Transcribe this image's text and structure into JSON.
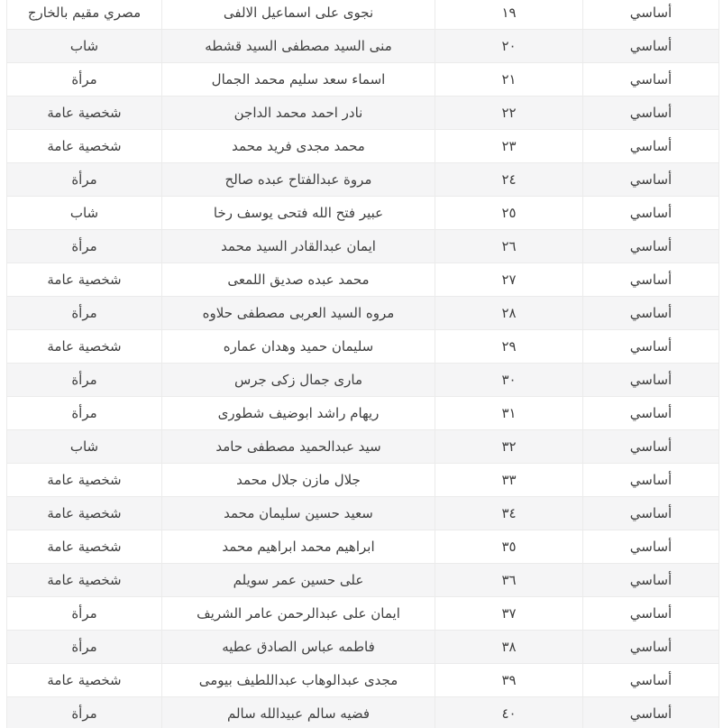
{
  "colors": {
    "background": "#ffffff",
    "row_stripe": "#f5f5f6",
    "border": "#ebebeb",
    "text": "#404040"
  },
  "table": {
    "direction": "rtl",
    "rows": [
      {
        "type": "أساسي",
        "number": "١٩",
        "name": "نجوى على اسماعيل الالفى",
        "category": "مصري مقيم بالخارج"
      },
      {
        "type": "أساسي",
        "number": "٢٠",
        "name": "منى السيد مصطفى السيد قشطه",
        "category": "شاب"
      },
      {
        "type": "أساسي",
        "number": "٢١",
        "name": "اسماء سعد سليم محمد الجمال",
        "category": "مرأة"
      },
      {
        "type": "أساسي",
        "number": "٢٢",
        "name": "نادر احمد محمد الداجن",
        "category": "شخصية عامة"
      },
      {
        "type": "أساسي",
        "number": "٢٣",
        "name": "محمد مجدى فريد محمد",
        "category": "شخصية عامة"
      },
      {
        "type": "أساسي",
        "number": "٢٤",
        "name": "مروة عبدالفتاح عبده صالح",
        "category": "مرأة"
      },
      {
        "type": "أساسي",
        "number": "٢٥",
        "name": "عبير فتح الله فتحى يوسف رخا",
        "category": "شاب"
      },
      {
        "type": "أساسي",
        "number": "٢٦",
        "name": "ايمان عبدالقادر السيد محمد",
        "category": "مرأة"
      },
      {
        "type": "أساسي",
        "number": "٢٧",
        "name": "محمد عبده صديق اللمعى",
        "category": "شخصية عامة"
      },
      {
        "type": "أساسي",
        "number": "٢٨",
        "name": "مروه السيد العربى مصطفى حلاوه",
        "category": "مرأة"
      },
      {
        "type": "أساسي",
        "number": "٢٩",
        "name": "سليمان حميد وهدان عماره",
        "category": "شخصية عامة"
      },
      {
        "type": "أساسي",
        "number": "٣٠",
        "name": "مارى جمال زكى جرس",
        "category": "مرأة"
      },
      {
        "type": "أساسي",
        "number": "٣١",
        "name": "ريهام راشد ابوضيف شطورى",
        "category": "مرأة"
      },
      {
        "type": "أساسي",
        "number": "٣٢",
        "name": "سيد عبدالحميد مصطفى حامد",
        "category": "شاب"
      },
      {
        "type": "أساسي",
        "number": "٣٣",
        "name": "جلال مازن جلال محمد",
        "category": "شخصية عامة"
      },
      {
        "type": "أساسي",
        "number": "٣٤",
        "name": "سعيد حسين سليمان محمد",
        "category": "شخصية عامة"
      },
      {
        "type": "أساسي",
        "number": "٣٥",
        "name": "ابراهيم محمد ابراهيم محمد",
        "category": "شخصية عامة"
      },
      {
        "type": "أساسي",
        "number": "٣٦",
        "name": "على حسين عمر سويلم",
        "category": "شخصية عامة"
      },
      {
        "type": "أساسي",
        "number": "٣٧",
        "name": "ايمان على عبدالرحمن عامر الشريف",
        "category": "مرأة"
      },
      {
        "type": "أساسي",
        "number": "٣٨",
        "name": "فاطمه عباس الصادق عطيه",
        "category": "مرأة"
      },
      {
        "type": "أساسي",
        "number": "٣٩",
        "name": "مجدى عبدالوهاب عبداللطيف بيومى",
        "category": "شخصية عامة"
      },
      {
        "type": "أساسي",
        "number": "٤٠",
        "name": "فضيه سالم عبيدالله سالم",
        "category": "مرأة"
      }
    ]
  }
}
